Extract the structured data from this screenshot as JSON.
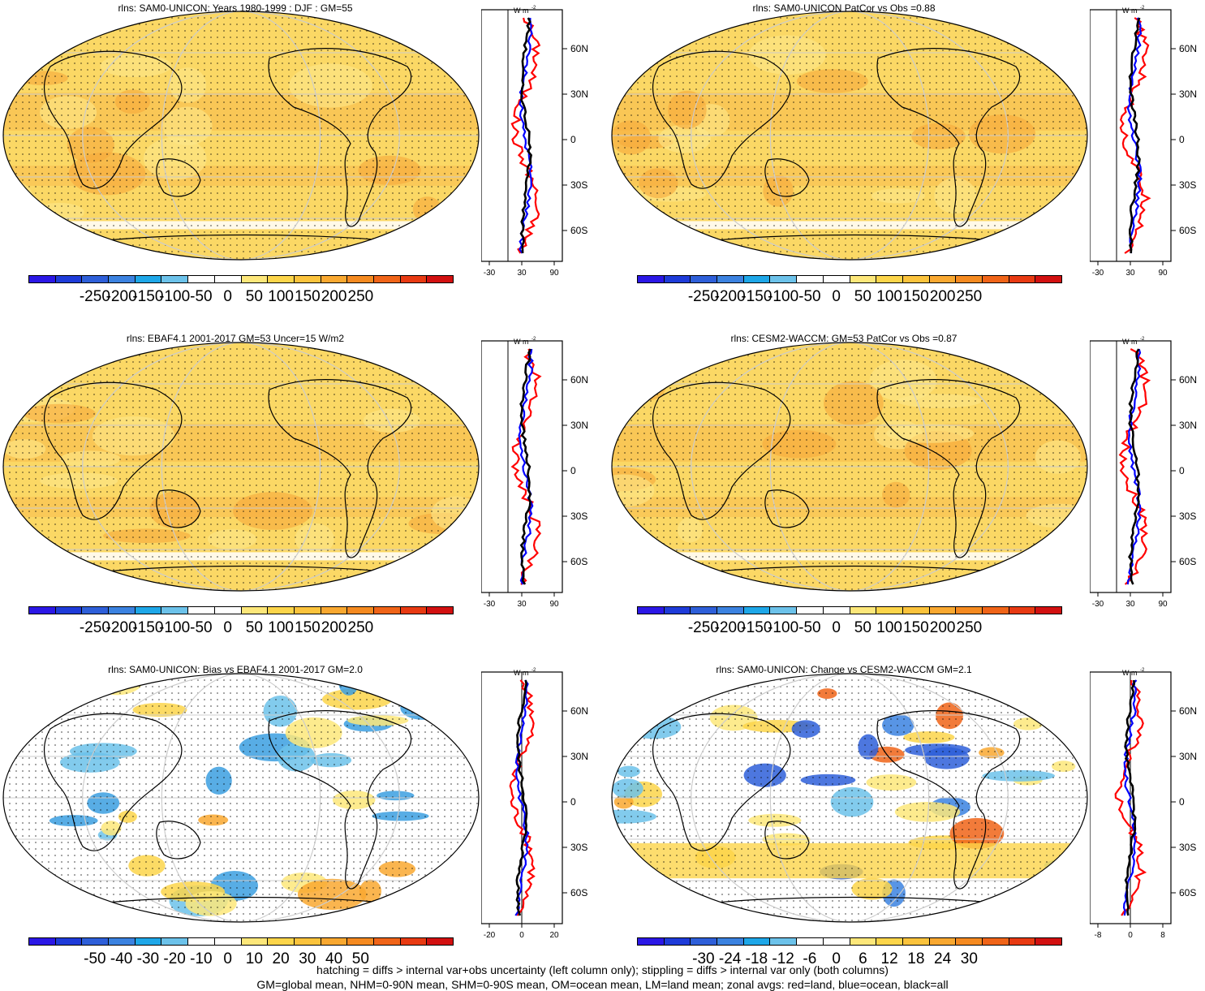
{
  "panels": [
    {
      "title": "rlns: SAM0-UNICON: Years 1980-1999 : DJF : GM=55",
      "type": "abs",
      "colorbar_labels": [
        "-250",
        "-200",
        "-150",
        "-100",
        "-50",
        "0",
        "50",
        "100",
        "150",
        "200",
        "250"
      ],
      "zonal_unit": "W m",
      "zonal_unit_exp": "-2",
      "zonal_xticks": [
        "-30",
        "30",
        "90"
      ],
      "zonal_lat_labels": [
        "60N",
        "30N",
        "0",
        "30S",
        "60S"
      ]
    },
    {
      "title": "rlns: SAM0-UNICON PatCor vs Obs =0.88",
      "type": "abs",
      "colorbar_labels": [
        "-250",
        "-200",
        "-150",
        "-100",
        "-50",
        "0",
        "50",
        "100",
        "150",
        "200",
        "250"
      ],
      "zonal_unit": "W m",
      "zonal_unit_exp": "-2",
      "zonal_xticks": [
        "-30",
        "30",
        "90"
      ],
      "zonal_lat_labels": [
        "60N",
        "30N",
        "0",
        "30S",
        "60S"
      ]
    },
    {
      "title": "rlns: EBAF4.1 2001-2017 GM=53 Uncer=15 W/m2",
      "type": "abs",
      "colorbar_labels": [
        "-250",
        "-200",
        "-150",
        "-100",
        "-50",
        "0",
        "50",
        "100",
        "150",
        "200",
        "250"
      ],
      "zonal_unit": "W m",
      "zonal_unit_exp": "-2",
      "zonal_xticks": [
        "-30",
        "30",
        "90"
      ],
      "zonal_lat_labels": [
        "60N",
        "30N",
        "0",
        "30S",
        "60S"
      ]
    },
    {
      "title": "rlns: CESM2-WACCM: GM=53 PatCor vs Obs =0.87",
      "type": "abs",
      "colorbar_labels": [
        "-250",
        "-200",
        "-150",
        "-100",
        "-50",
        "0",
        "50",
        "100",
        "150",
        "200",
        "250"
      ],
      "zonal_unit": "W m",
      "zonal_unit_exp": "-2",
      "zonal_xticks": [
        "-30",
        "30",
        "90"
      ],
      "zonal_lat_labels": [
        "60N",
        "30N",
        "0",
        "30S",
        "60S"
      ]
    },
    {
      "title": "rlns: SAM0-UNICON: Bias vs EBAF4.1 2001-2017 GM=2.0",
      "type": "diff",
      "colorbar_labels": [
        "-50",
        "-40",
        "-30",
        "-20",
        "-10",
        "0",
        "10",
        "20",
        "30",
        "40",
        "50"
      ],
      "zonal_unit": "W m",
      "zonal_unit_exp": "-2",
      "zonal_xticks": [
        "-20",
        "0",
        "20"
      ],
      "zonal_lat_labels": [
        "60N",
        "30N",
        "0",
        "30S",
        "60S"
      ]
    },
    {
      "title": "rlns: SAM0-UNICON: Change vs CESM2-WACCM GM=2.1",
      "type": "diff",
      "colorbar_labels": [
        "-30",
        "-24",
        "-18",
        "-12",
        "-6",
        "0",
        "6",
        "12",
        "18",
        "24",
        "30"
      ],
      "zonal_unit": "W m",
      "zonal_unit_exp": "-2",
      "zonal_xticks": [
        "-8",
        "0",
        "8"
      ],
      "zonal_lat_labels": [
        "60N",
        "30N",
        "0",
        "30S",
        "60S"
      ]
    }
  ],
  "colors": {
    "abs_map_fill": "#fbd865",
    "abs_map_fill_warm": "#f8b94a",
    "diff_map_fill": "#ffffff",
    "land": "#ff0000",
    "ocean": "#0000ff",
    "all": "#000000",
    "colorbar": [
      "#2b17e6",
      "#1e3bd9",
      "#2e5fd9",
      "#3b82e0",
      "#1ea7e8",
      "#6cc2ea",
      "#ffffff",
      "#ffffff",
      "#fde77a",
      "#fcd54a",
      "#fbc33c",
      "#f9a830",
      "#f58a20",
      "#f06418",
      "#e83a12",
      "#d21010"
    ]
  },
  "footer": [
    "hatching = diffs > internal var+obs uncertainty (left column only); stippling = diffs > internal var only (both columns)",
    "GM=global mean, NHM=0-90N mean, SHM=0-90S mean, OM=ocean mean, LM=land mean; zonal avgs: red=land, blue=ocean, black=all"
  ]
}
